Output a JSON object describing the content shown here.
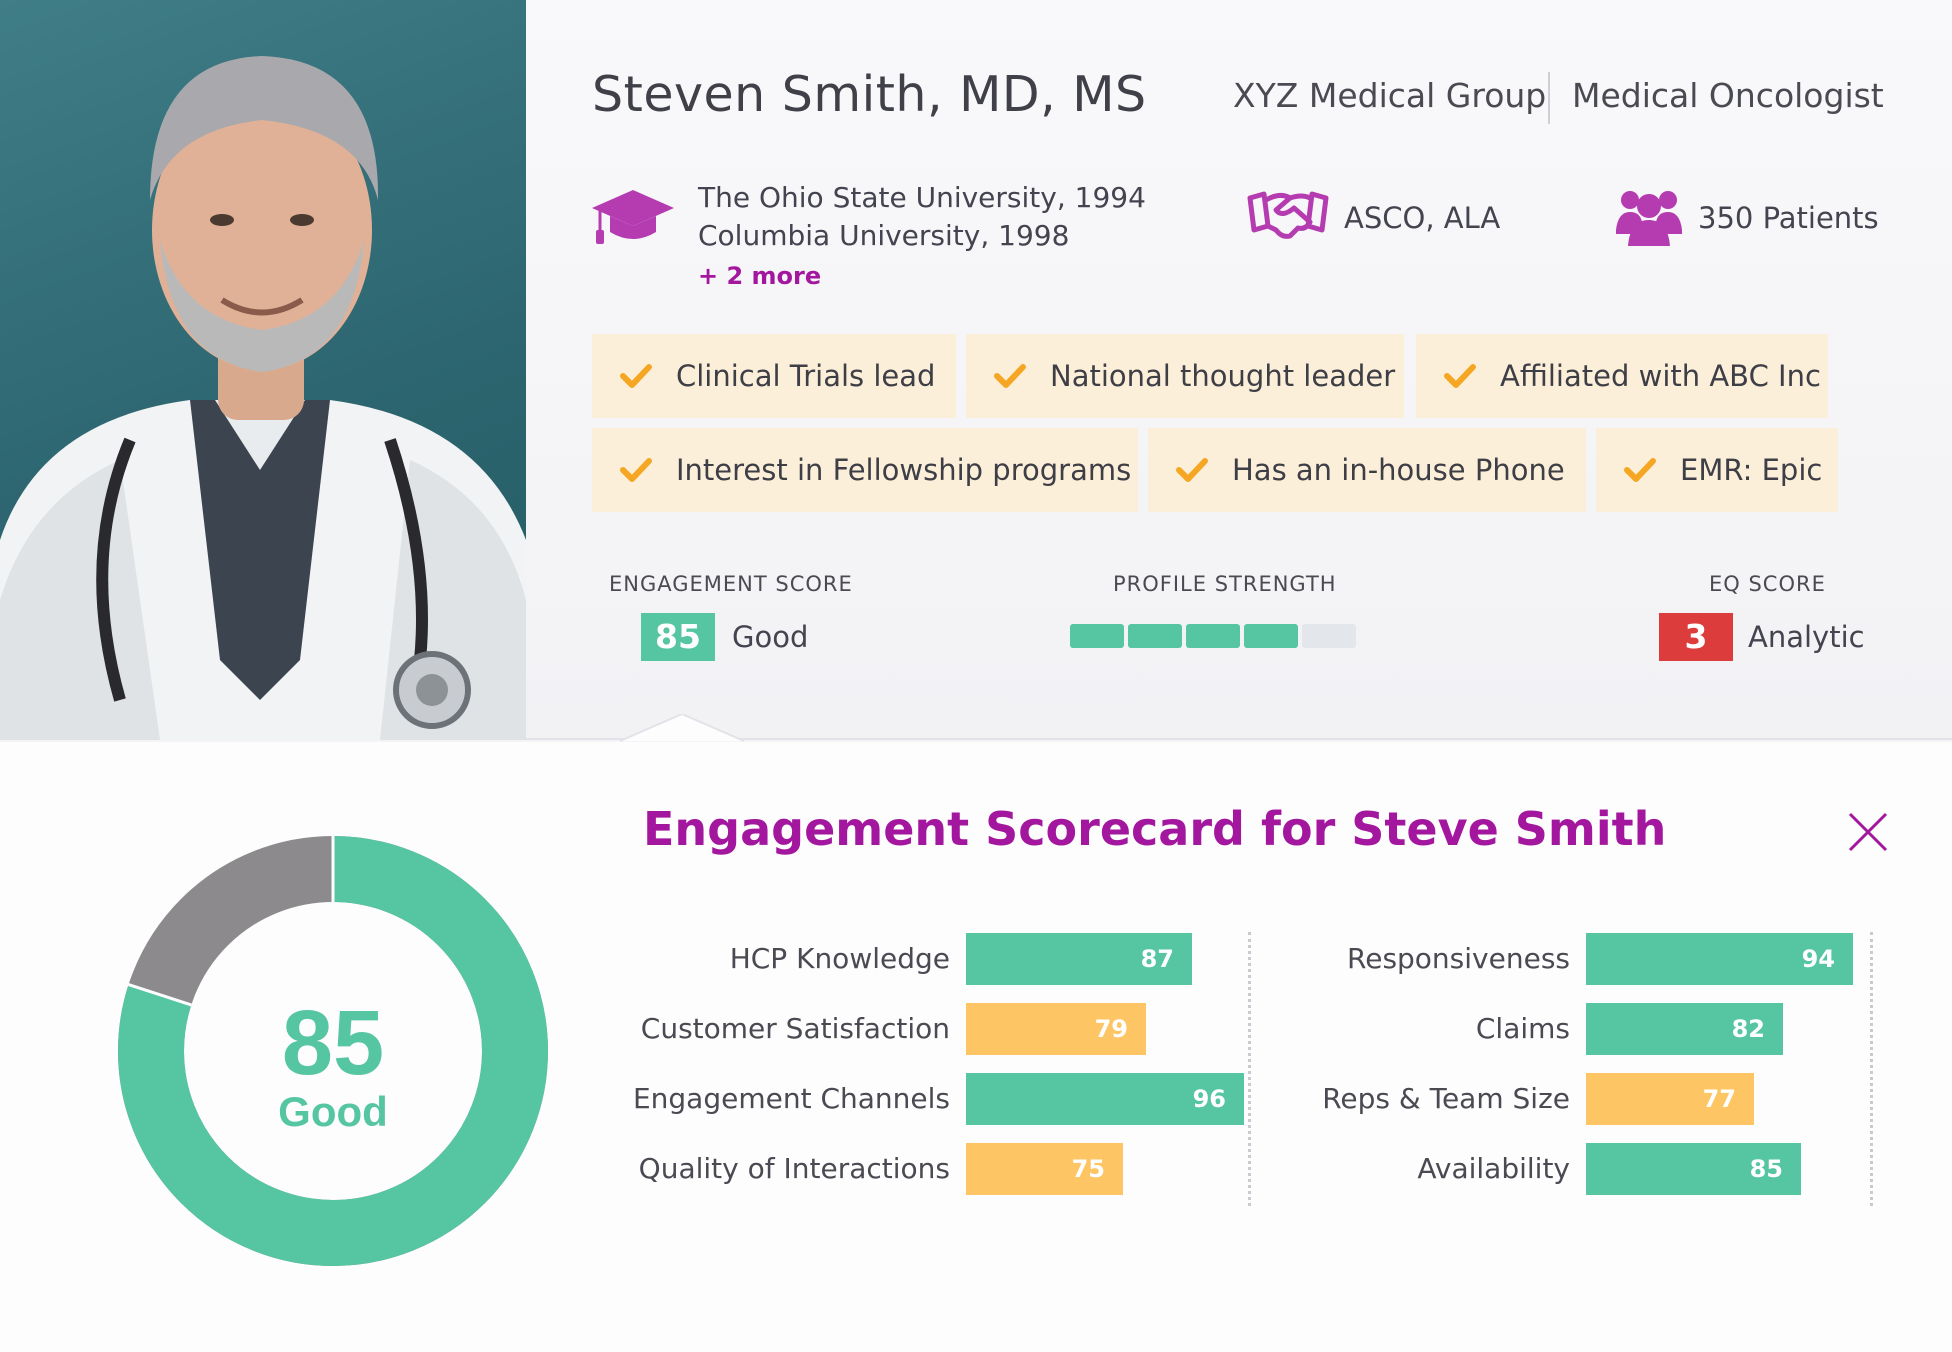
{
  "profile": {
    "name": "Steven Smith, MD, MS",
    "org": "XYZ Medical Group",
    "specialty": "Medical Oncologist",
    "education": [
      "The Ohio State University, 1994",
      "Columbia University, 1998"
    ],
    "education_more": "+ 2 more",
    "associations": "ASCO, ALA",
    "patients": "350 Patients",
    "photo_icon": "doctor-photo"
  },
  "tags": [
    "Clinical Trials lead",
    "National thought leader",
    "Affiliated with ABC Inc",
    "Interest in Fellowship programs",
    "Has an in-house Phone",
    "EMR: Epic"
  ],
  "metrics": {
    "engagement_label": "ENGAGEMENT SCORE",
    "engagement_value": "85",
    "engagement_text": "Good",
    "strength_label": "PROFILE STRENGTH",
    "strength_filled": 4,
    "strength_total": 5,
    "eq_label": "EQ SCORE",
    "eq_value": "3",
    "eq_text": "Analytic"
  },
  "scorecard": {
    "title": "Engagement Scorecard for Steve Smith",
    "overall_value": "85",
    "overall_text": "Good",
    "overall_fraction": 0.8,
    "left": [
      {
        "label": "HCP Knowledge",
        "value": "87",
        "status": "good"
      },
      {
        "label": "Customer Satisfaction",
        "value": "79",
        "status": "warn"
      },
      {
        "label": "Engagement Channels",
        "value": "96",
        "status": "good"
      },
      {
        "label": "Quality of Interactions",
        "value": "75",
        "status": "warn"
      }
    ],
    "right": [
      {
        "label": "Responsiveness",
        "value": "94",
        "status": "good"
      },
      {
        "label": "Claims",
        "value": "82",
        "status": "good"
      },
      {
        "label": "Reps & Team Size",
        "value": "77",
        "status": "warn"
      },
      {
        "label": "Availability",
        "value": "85",
        "status": "good"
      }
    ]
  },
  "colors": {
    "accent": "#a3169e",
    "good": "#56c5a2",
    "warn": "#fec565",
    "danger": "#dd3c3c",
    "muted": "#8c8a8d",
    "tag_bg": "#fcefd9",
    "check": "#f5a623"
  }
}
